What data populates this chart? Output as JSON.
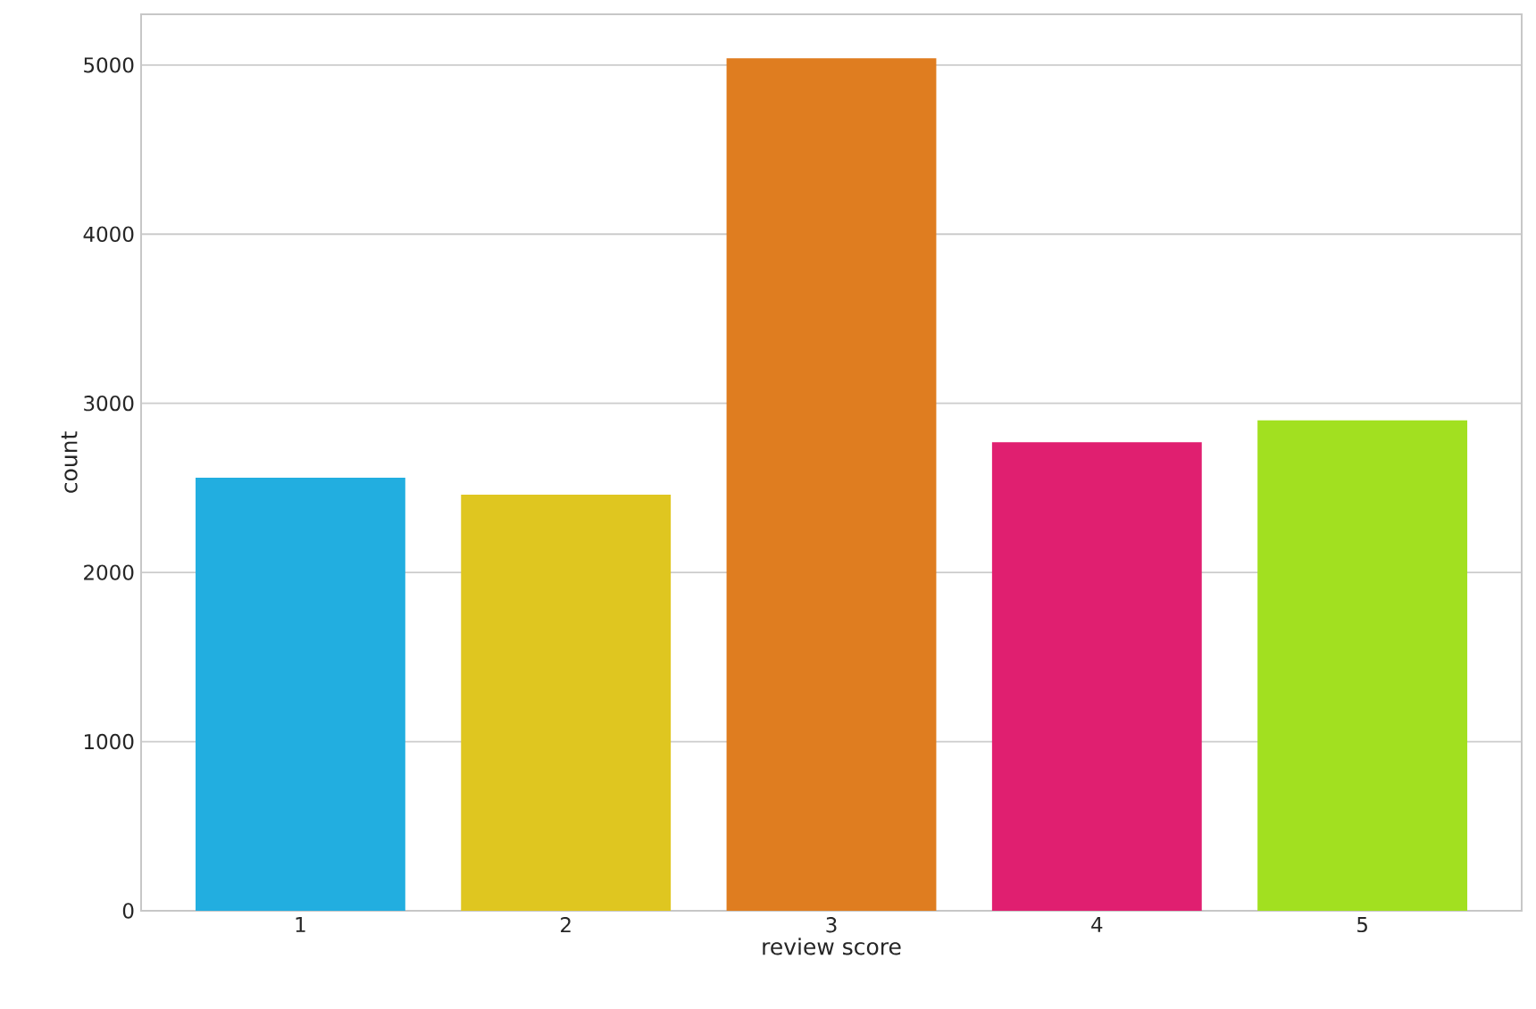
{
  "chart_data": {
    "type": "bar",
    "xlabel": "review score",
    "ylabel": "count",
    "categories": [
      "1",
      "2",
      "3",
      "4",
      "5"
    ],
    "values": [
      2560,
      2460,
      5040,
      2770,
      2900
    ],
    "colors": [
      "#22aee0",
      "#dfc620",
      "#df7d20",
      "#e01f70",
      "#a2e020"
    ],
    "ylim": [
      0,
      5300
    ],
    "yticks": [
      0,
      1000,
      2000,
      3000,
      4000,
      5000
    ],
    "grid": "y"
  }
}
